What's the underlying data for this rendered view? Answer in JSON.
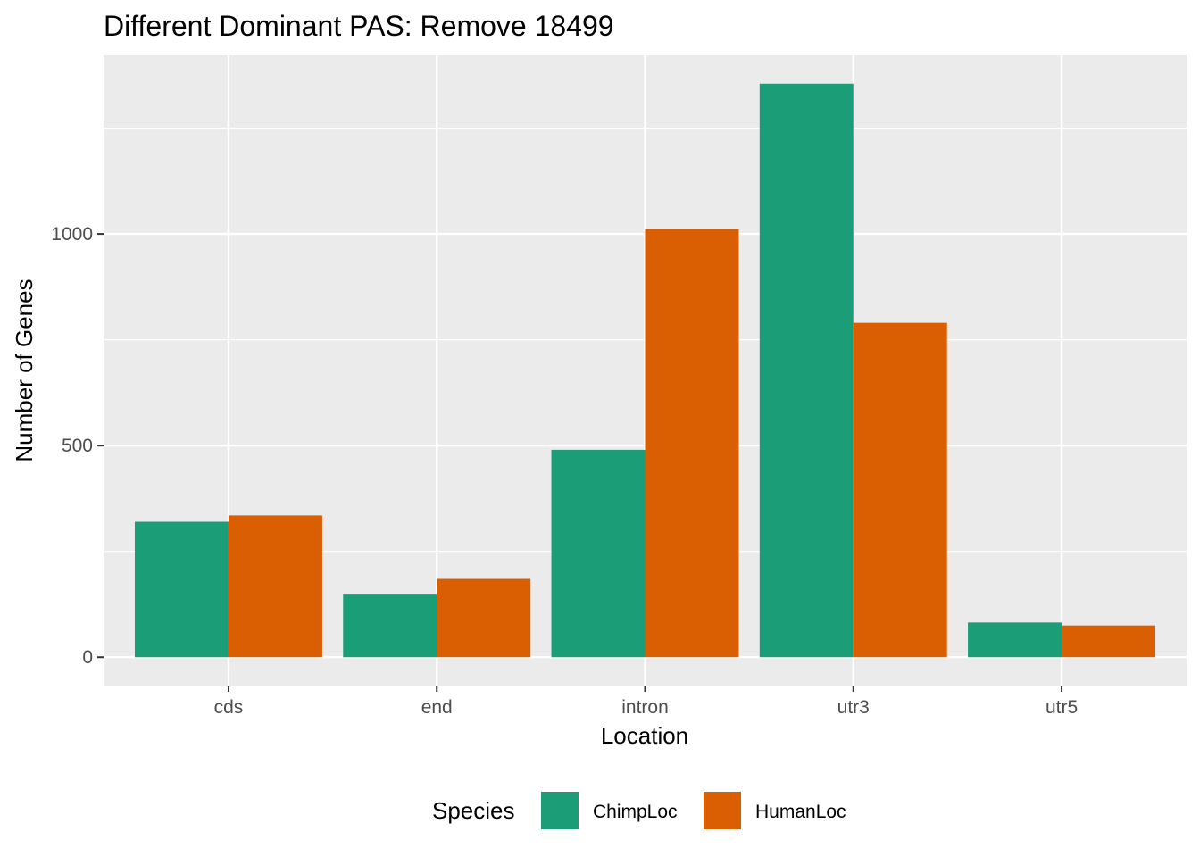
{
  "chart_data": {
    "type": "bar",
    "title": "Different Dominant PAS: Remove 18499",
    "xlabel": "Location",
    "ylabel": "Number of Genes",
    "categories": [
      "cds",
      "end",
      "intron",
      "utr3",
      "utr5"
    ],
    "series": [
      {
        "name": "ChimpLoc",
        "values": [
          320,
          150,
          490,
          1355,
          82
        ]
      },
      {
        "name": "HumanLoc",
        "values": [
          335,
          185,
          1012,
          790,
          75
        ]
      }
    ],
    "ylim": [
      -67,
      1422
    ],
    "yticks": [
      0,
      500,
      1000
    ],
    "y_tick_labels": [
      "0",
      "500",
      "1000"
    ],
    "grid": true,
    "legend": {
      "title": "Species",
      "position": "bottom",
      "entries": [
        "ChimpLoc",
        "HumanLoc"
      ]
    },
    "colors": {
      "ChimpLoc": "#1b9e77",
      "HumanLoc": "#d95f02",
      "panel_background": "#ebebeb",
      "grid": "#ffffff",
      "tick_label": "#4d4d4d"
    }
  }
}
